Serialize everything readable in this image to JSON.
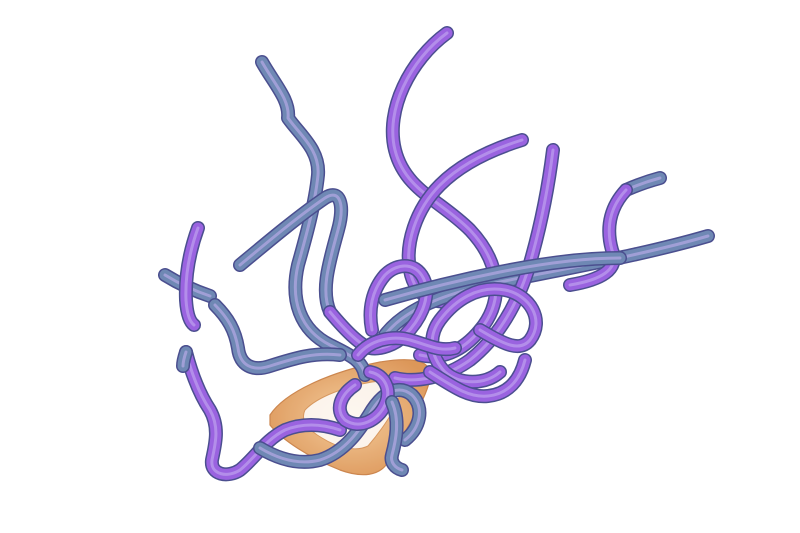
{
  "scene": {
    "subject": "streamline-tubes",
    "colors": {
      "background": "#ffffff",
      "tube_violet": "#9a63e0",
      "tube_slate": "#6f88b4",
      "tube_edge": "#4b4f8f",
      "tube_highlight": "#c9b3f2",
      "ring_orange": "#e6a45a",
      "ring_edge": "#c77a3c"
    }
  }
}
